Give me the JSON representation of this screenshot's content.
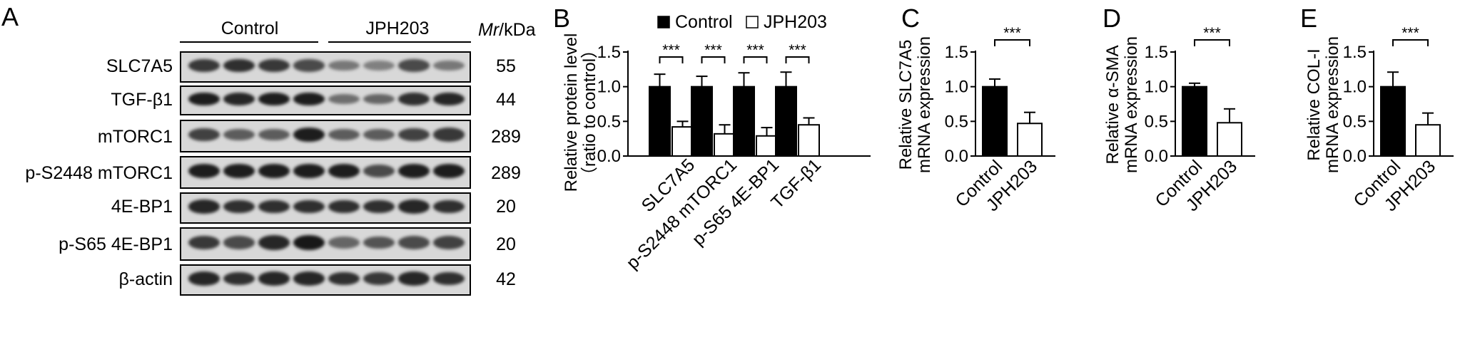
{
  "panel_letters": [
    "A",
    "B",
    "C",
    "D",
    "E"
  ],
  "western_blot": {
    "group_labels": [
      "Control",
      "JPH203"
    ],
    "mr_header_italic": "Mr",
    "mr_header_rest": "/kDa",
    "rows": [
      {
        "label": "SLC7A5",
        "mr": "55"
      },
      {
        "label": "TGF-β1",
        "mr": "44"
      },
      {
        "label": "mTORC1",
        "mr": "289"
      },
      {
        "label": "p-S2448 mTORC1",
        "mr": "289"
      },
      {
        "label": "4E-BP1",
        "mr": "20"
      },
      {
        "label": "p-S65 4E-BP1",
        "mr": "20"
      },
      {
        "label": "β-actin",
        "mr": "42"
      }
    ]
  },
  "chart_data": [
    {
      "panel": "B",
      "type": "bar",
      "ylabel_line1": "Relative protein level",
      "ylabel_line2": "（ratio to control）",
      "legend": [
        "Control",
        "JPH203"
      ],
      "legend_position": "top",
      "categories": [
        "SLC7A5",
        "p-S2448 mTORC1",
        "p-S65 4E-BP1",
        "TGF-β1"
      ],
      "series": [
        {
          "name": "Control",
          "color": "#000000",
          "values": [
            1.0,
            1.0,
            1.0,
            1.0
          ],
          "errors": [
            0.18,
            0.15,
            0.2,
            0.21
          ]
        },
        {
          "name": "JPH203",
          "color": "#ffffff",
          "values": [
            0.42,
            0.32,
            0.29,
            0.45
          ],
          "errors": [
            0.08,
            0.13,
            0.12,
            0.1
          ]
        }
      ],
      "significance": [
        "***",
        "***",
        "***",
        "***"
      ],
      "ylim": [
        0,
        1.5
      ],
      "yticks": [
        "0.0",
        "0.5",
        "1.0",
        "1.5"
      ],
      "grid": false
    },
    {
      "panel": "C",
      "type": "bar",
      "ylabel_line1": "Relative SLC7A5",
      "ylabel_line2": "mRNA expression",
      "categories": [
        "Control",
        "JPH203"
      ],
      "values": [
        1.0,
        0.47
      ],
      "errors": [
        0.11,
        0.16
      ],
      "colors": [
        "#000000",
        "#ffffff"
      ],
      "significance": "***",
      "ylim": [
        0,
        1.5
      ],
      "yticks": [
        "0.0",
        "0.5",
        "1.0",
        "1.5"
      ],
      "grid": false
    },
    {
      "panel": "D",
      "type": "bar",
      "ylabel_line1": "Relative α-SMA",
      "ylabel_line2": "mRNA expression",
      "categories": [
        "Control",
        "JPH203"
      ],
      "values": [
        1.0,
        0.48
      ],
      "errors": [
        0.05,
        0.2
      ],
      "colors": [
        "#000000",
        "#ffffff"
      ],
      "significance": "***",
      "ylim": [
        0,
        1.5
      ],
      "yticks": [
        "0.0",
        "0.5",
        "1.0",
        "1.5"
      ],
      "grid": false
    },
    {
      "panel": "E",
      "type": "bar",
      "ylabel_line1": "Relative COL-I",
      "ylabel_line2": "mRNA expression",
      "categories": [
        "Control",
        "JPH203"
      ],
      "values": [
        1.0,
        0.45
      ],
      "errors": [
        0.21,
        0.17
      ],
      "colors": [
        "#000000",
        "#ffffff"
      ],
      "significance": "***",
      "ylim": [
        0,
        1.5
      ],
      "yticks": [
        "0.0",
        "0.5",
        "1.0",
        "1.5"
      ],
      "grid": false
    }
  ]
}
